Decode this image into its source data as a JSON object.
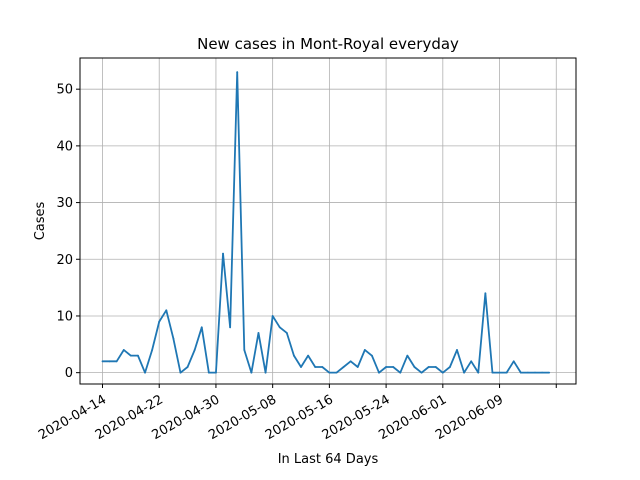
{
  "chart_data": {
    "type": "line",
    "title": "New cases in Mont-Royal everyday",
    "xlabel": "In Last 64 Days",
    "ylabel": "Cases",
    "grid": true,
    "ylim": [
      -2,
      55.5
    ],
    "y_ticks": [
      0,
      10,
      20,
      30,
      40,
      50
    ],
    "x_ticks": [
      "2020-04-14",
      "2020-04-22",
      "2020-04-30",
      "2020-05-08",
      "2020-05-16",
      "2020-05-24",
      "2020-06-01",
      "2020-06-09",
      ""
    ],
    "color": "#1f77b4",
    "series": [
      {
        "x": [
          "2020-04-14",
          "2020-04-15",
          "2020-04-16",
          "2020-04-17",
          "2020-04-18",
          "2020-04-19",
          "2020-04-20",
          "2020-04-21",
          "2020-04-22",
          "2020-04-23",
          "2020-04-24",
          "2020-04-25",
          "2020-04-26",
          "2020-04-27",
          "2020-04-28",
          "2020-04-29",
          "2020-04-30",
          "2020-05-01",
          "2020-05-02",
          "2020-05-03",
          "2020-05-04",
          "2020-05-05",
          "2020-05-06",
          "2020-05-07",
          "2020-05-08",
          "2020-05-09",
          "2020-05-10",
          "2020-05-11",
          "2020-05-12",
          "2020-05-13",
          "2020-05-14",
          "2020-05-15",
          "2020-05-16",
          "2020-05-17",
          "2020-05-18",
          "2020-05-19",
          "2020-05-20",
          "2020-05-21",
          "2020-05-22",
          "2020-05-23",
          "2020-05-24",
          "2020-05-25",
          "2020-05-26",
          "2020-05-27",
          "2020-05-28",
          "2020-05-29",
          "2020-05-30",
          "2020-05-31",
          "2020-06-01",
          "2020-06-02",
          "2020-06-03",
          "2020-06-04",
          "2020-06-05",
          "2020-06-06",
          "2020-06-07",
          "2020-06-08",
          "2020-06-09",
          "2020-06-10",
          "2020-06-11",
          "2020-06-12",
          "2020-06-13",
          "2020-06-14",
          "2020-06-15",
          "2020-06-16"
        ],
        "values": [
          2,
          2,
          2,
          4,
          3,
          3,
          0,
          4,
          9,
          11,
          6,
          0,
          1,
          4,
          8,
          0,
          0,
          21,
          8,
          53,
          4,
          0,
          7,
          0,
          10,
          8,
          7,
          3,
          1,
          3,
          1,
          1,
          0,
          0,
          1,
          2,
          1,
          4,
          3,
          0,
          1,
          1,
          0,
          3,
          1,
          0,
          1,
          1,
          0,
          1,
          4,
          0,
          2,
          0,
          14,
          0,
          0,
          0,
          2,
          0,
          0,
          0,
          0,
          0
        ]
      }
    ]
  }
}
